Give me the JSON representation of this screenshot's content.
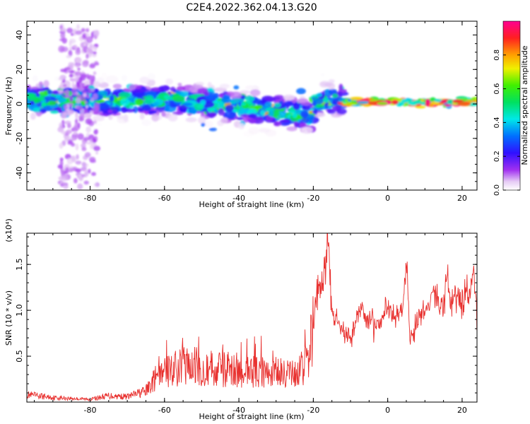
{
  "title": "C2E4.2022.362.04.13.G20",
  "colors": {
    "snr_line": "#e8302e",
    "axis": "#000000"
  },
  "chart_data": [
    {
      "type": "heatmap",
      "xlabel": "Height of straight line (km)",
      "ylabel": "Frequency (Hz)",
      "xlim": [
        -97,
        24
      ],
      "ylim": [
        -50,
        48
      ],
      "xticks": [
        "-80",
        "-60",
        "-40",
        "-20",
        "0",
        "20"
      ],
      "yticks": [
        "-40",
        "-20",
        "0",
        "20",
        "40"
      ],
      "colorbar": {
        "label": "Normalized spectral amplitude",
        "range": [
          0,
          1
        ],
        "ticks": [
          "0.0",
          "0.2",
          "0.4",
          "0.6",
          "0.8"
        ],
        "colormap": "rainbow (white-violet-blue-cyan-green-yellow-orange-red-magenta)"
      },
      "features": [
        {
          "x_range": [
            -97,
            -12
          ],
          "frequency_center": 2,
          "frequency_spread": 8,
          "amplitude": 0.45,
          "note": "broad banded energy"
        },
        {
          "x_range": [
            -88,
            -78
          ],
          "frequency_range": [
            -48,
            46
          ],
          "amplitude": 0.1,
          "note": "faint vertical scatter"
        },
        {
          "x_range": [
            -12,
            24
          ],
          "frequency_center": 1,
          "frequency_spread": 2,
          "amplitude": 0.95,
          "note": "narrow strong band"
        }
      ]
    },
    {
      "type": "line",
      "xlabel": "Height of straight line (km)",
      "ylabel": "SNR (10 * v/v)",
      "y_multiplier": "(x10⁴)",
      "xlim": [
        -97,
        24
      ],
      "ylim": [
        0,
        18400
      ],
      "xticks": [
        "-80",
        "-60",
        "-40",
        "-20",
        "0",
        "20"
      ],
      "yticks": [
        "0.5",
        "1.0",
        "1.5"
      ],
      "series": [
        {
          "x": [
            -97,
            -90,
            -80,
            -75,
            -70,
            -65,
            -62,
            -55,
            -50,
            -45,
            -40,
            -35,
            -30,
            -25,
            -22,
            -20,
            -19,
            -17,
            -16,
            -15,
            -13,
            -10,
            -8,
            -5,
            -3,
            -1,
            0,
            2,
            4,
            5,
            6,
            8,
            10,
            12,
            13,
            14,
            15,
            16,
            17,
            18,
            19,
            20,
            21,
            22,
            23,
            24
          ],
          "y": [
            800,
            500,
            300,
            700,
            600,
            1200,
            2800,
            4000,
            3800,
            3600,
            3500,
            3300,
            3200,
            3000,
            4000,
            8000,
            12000,
            13000,
            18200,
            10000,
            8000,
            7000,
            10000,
            9000,
            8500,
            9500,
            10000,
            9000,
            10000,
            15000,
            7000,
            9000,
            10000,
            12000,
            13000,
            10000,
            11000,
            14000,
            10000,
            12000,
            11500,
            11000,
            12000,
            11000,
            15000,
            9000
          ]
        }
      ]
    }
  ]
}
